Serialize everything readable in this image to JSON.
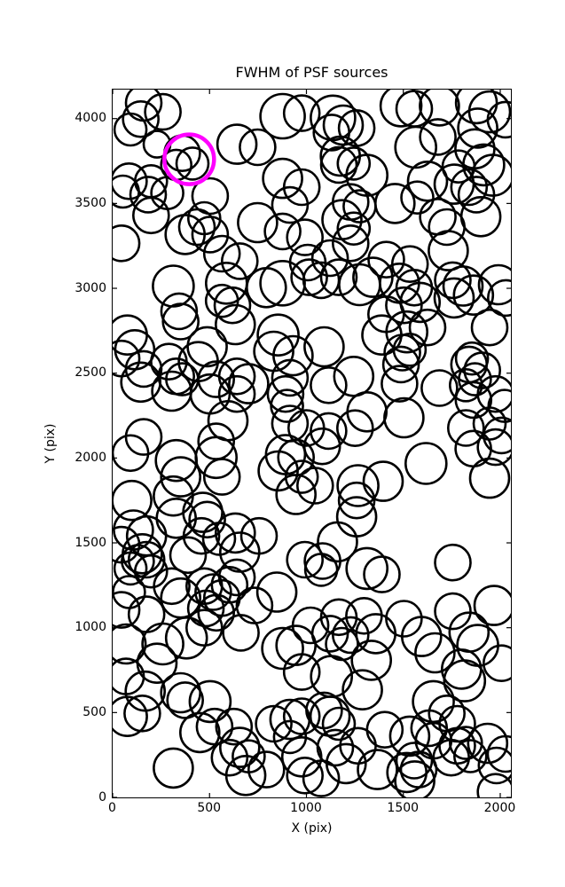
{
  "chart_data": {
    "type": "scatter",
    "title": "FWHM of PSF sources",
    "xlabel": "X (pix)",
    "ylabel": "Y (pix)",
    "xlim": [
      0,
      2055
    ],
    "ylim": [
      0,
      4171
    ],
    "xticks": [
      0,
      500,
      1000,
      1500,
      2000
    ],
    "yticks": [
      0,
      500,
      1000,
      1500,
      2000,
      2500,
      3000,
      3500,
      4000
    ],
    "grid": false,
    "legend": "none",
    "tick_direction": "in",
    "ticks_on_all_sides": true,
    "marker_style": {
      "fill": "none",
      "stroke": "#000000",
      "stroke_width": 2.6
    },
    "highlight": {
      "x": 395,
      "y": 3760,
      "r": 28,
      "color": "#ff00ff",
      "stroke_width": 4.5
    },
    "points": [
      [
        160,
        4093,
        20
      ],
      [
        259,
        4040,
        20
      ],
      [
        145,
        3997,
        20
      ],
      [
        92,
        3936,
        18
      ],
      [
        229,
        3849,
        15
      ],
      [
        359,
        3796,
        20
      ],
      [
        412,
        3735,
        18
      ],
      [
        328,
        3727,
        17
      ],
      [
        641,
        3849,
        22
      ],
      [
        748,
        3831,
        20
      ],
      [
        877,
        4014,
        25
      ],
      [
        976,
        4032,
        20
      ],
      [
        84,
        3631,
        20
      ],
      [
        53,
        3570,
        18
      ],
      [
        198,
        3631,
        18
      ],
      [
        183,
        3552,
        20
      ],
      [
        282,
        3561,
        18
      ],
      [
        198,
        3430,
        20
      ],
      [
        503,
        3544,
        20
      ],
      [
        473,
        3413,
        18
      ],
      [
        435,
        3361,
        20
      ],
      [
        374,
        3317,
        22
      ],
      [
        503,
        3317,
        20
      ],
      [
        877,
        3648,
        22
      ],
      [
        976,
        3596,
        20
      ],
      [
        915,
        3491,
        20
      ],
      [
        748,
        3387,
        22
      ],
      [
        877,
        3335,
        20
      ],
      [
        992,
        3300,
        20
      ],
      [
        46,
        3265,
        20
      ],
      [
        564,
        3204,
        20
      ],
      [
        656,
        3160,
        20
      ],
      [
        1007,
        3152,
        20
      ],
      [
        1137,
        4005,
        25
      ],
      [
        1190,
        3962,
        22
      ],
      [
        1129,
        3918,
        20
      ],
      [
        1259,
        3944,
        20
      ],
      [
        1175,
        3779,
        22
      ],
      [
        1167,
        3727,
        20
      ],
      [
        1244,
        3735,
        18
      ],
      [
        1488,
        4075,
        23
      ],
      [
        1556,
        4058,
        20
      ],
      [
        1686,
        4075,
        22
      ],
      [
        1564,
        3831,
        23
      ],
      [
        1678,
        3892,
        20
      ],
      [
        1877,
        4093,
        23
      ],
      [
        1945,
        4040,
        23
      ],
      [
        1884,
        3944,
        22
      ],
      [
        1869,
        3822,
        22
      ],
      [
        1915,
        3727,
        23
      ],
      [
        1785,
        3718,
        18
      ],
      [
        1312,
        3666,
        23
      ],
      [
        1625,
        3631,
        22
      ],
      [
        1762,
        3614,
        22
      ],
      [
        1839,
        3596,
        20
      ],
      [
        1877,
        3552,
        20
      ],
      [
        1961,
        3666,
        23
      ],
      [
        1457,
        3500,
        22
      ],
      [
        1572,
        3535,
        18
      ],
      [
        1228,
        3509,
        20
      ],
      [
        1274,
        3483,
        18
      ],
      [
        1183,
        3404,
        22
      ],
      [
        1244,
        3352,
        18
      ],
      [
        1228,
        3265,
        20
      ],
      [
        1678,
        3422,
        20
      ],
      [
        1724,
        3361,
        20
      ],
      [
        1900,
        3422,
        22
      ],
      [
        1122,
        3178,
        20
      ],
      [
        1412,
        3169,
        20
      ],
      [
        1534,
        3143,
        20
      ],
      [
        1732,
        3222,
        22
      ],
      [
        2027,
        3994,
        20
      ],
      [
        313,
        3013,
        23
      ],
      [
        343,
        2865,
        20
      ],
      [
        351,
        2804,
        20
      ],
      [
        587,
        3030,
        23
      ],
      [
        564,
        2926,
        18
      ],
      [
        618,
        2900,
        20
      ],
      [
        633,
        2786,
        22
      ],
      [
        793,
        3004,
        22
      ],
      [
        877,
        3030,
        25
      ],
      [
        76,
        2725,
        22
      ],
      [
        114,
        2638,
        22
      ],
      [
        46,
        2586,
        20
      ],
      [
        160,
        2525,
        20
      ],
      [
        145,
        2447,
        22
      ],
      [
        290,
        2568,
        20
      ],
      [
        328,
        2481,
        20
      ],
      [
        359,
        2464,
        18
      ],
      [
        305,
        2394,
        22
      ],
      [
        442,
        2568,
        22
      ],
      [
        488,
        2656,
        22
      ],
      [
        534,
        2464,
        20
      ],
      [
        503,
        2377,
        22
      ],
      [
        641,
        2481,
        20
      ],
      [
        702,
        2438,
        22
      ],
      [
        641,
        2377,
        20
      ],
      [
        595,
        2220,
        22
      ],
      [
        854,
        2725,
        23
      ],
      [
        831,
        2629,
        22
      ],
      [
        931,
        2603,
        22
      ],
      [
        915,
        2473,
        20
      ],
      [
        892,
        2377,
        20
      ],
      [
        900,
        2307,
        18
      ],
      [
        915,
        2203,
        20
      ],
      [
        999,
        2177,
        20
      ],
      [
        160,
        2124,
        20
      ],
      [
        534,
        2098,
        20
      ],
      [
        1014,
        3065,
        20
      ],
      [
        1076,
        3048,
        20
      ],
      [
        1167,
        3065,
        20
      ],
      [
        1274,
        3021,
        23
      ],
      [
        1343,
        3065,
        22
      ],
      [
        1480,
        3030,
        22
      ],
      [
        1556,
        3004,
        20
      ],
      [
        1503,
        2900,
        20
      ],
      [
        1587,
        2917,
        22
      ],
      [
        1755,
        3048,
        20
      ],
      [
        1808,
        3013,
        22
      ],
      [
        1862,
        2960,
        22
      ],
      [
        1762,
        2943,
        22
      ],
      [
        1991,
        3021,
        22
      ],
      [
        2029,
        2943,
        20
      ],
      [
        1411,
        2847,
        20
      ],
      [
        1389,
        2725,
        22
      ],
      [
        1518,
        2743,
        23
      ],
      [
        1625,
        2769,
        20
      ],
      [
        1945,
        2769,
        20
      ],
      [
        1091,
        2655,
        22
      ],
      [
        1495,
        2621,
        20
      ],
      [
        1533,
        2638,
        18
      ],
      [
        1488,
        2551,
        20
      ],
      [
        1854,
        2586,
        18
      ],
      [
        1839,
        2551,
        20
      ],
      [
        1907,
        2516,
        20
      ],
      [
        1244,
        2481,
        22
      ],
      [
        1114,
        2429,
        20
      ],
      [
        1480,
        2438,
        20
      ],
      [
        1686,
        2412,
        20
      ],
      [
        1823,
        2429,
        18
      ],
      [
        1869,
        2464,
        18
      ],
      [
        1862,
        2342,
        20
      ],
      [
        1976,
        2377,
        20
      ],
      [
        2022,
        2307,
        18
      ],
      [
        1312,
        2272,
        22
      ],
      [
        1503,
        2237,
        22
      ],
      [
        1251,
        2176,
        20
      ],
      [
        1114,
        2159,
        20
      ],
      [
        1823,
        2177,
        20
      ],
      [
        1945,
        2203,
        18
      ],
      [
        2006,
        2133,
        20
      ],
      [
        92,
        2029,
        20
      ],
      [
        328,
        1985,
        23
      ],
      [
        351,
        1889,
        22
      ],
      [
        534,
        2003,
        23
      ],
      [
        564,
        1889,
        20
      ],
      [
        99,
        1750,
        22
      ],
      [
        313,
        1776,
        22
      ],
      [
        328,
        1645,
        22
      ],
      [
        465,
        1680,
        22
      ],
      [
        488,
        1637,
        20
      ],
      [
        107,
        1576,
        22
      ],
      [
        175,
        1541,
        22
      ],
      [
        46,
        1489,
        20
      ],
      [
        153,
        1436,
        22
      ],
      [
        175,
        1401,
        20
      ],
      [
        130,
        1393,
        18
      ],
      [
        92,
        1349,
        18
      ],
      [
        198,
        1332,
        18
      ],
      [
        458,
        1541,
        20
      ],
      [
        549,
        1524,
        18
      ],
      [
        389,
        1428,
        20
      ],
      [
        633,
        1558,
        22
      ],
      [
        656,
        1445,
        22
      ],
      [
        755,
        1541,
        20
      ],
      [
        892,
        2020,
        22
      ],
      [
        854,
        1924,
        22
      ],
      [
        946,
        2003,
        20
      ],
      [
        976,
        1889,
        18
      ],
      [
        946,
        1785,
        22
      ],
      [
        992,
        1401,
        20
      ],
      [
        305,
        1245,
        20
      ],
      [
        351,
        1175,
        22
      ],
      [
        473,
        1245,
        20
      ],
      [
        519,
        1210,
        20
      ],
      [
        564,
        1175,
        20
      ],
      [
        603,
        1253,
        20
      ],
      [
        641,
        1297,
        20
      ],
      [
        481,
        1114,
        20
      ],
      [
        534,
        1088,
        20
      ],
      [
        84,
        1210,
        18
      ],
      [
        46,
        1105,
        20
      ],
      [
        175,
        1079,
        20
      ],
      [
        847,
        1210,
        22
      ],
      [
        732,
        1131,
        20
      ],
      [
        1081,
        2069,
        20
      ],
      [
        1045,
        1837,
        20
      ],
      [
        1266,
        1837,
        23
      ],
      [
        1396,
        1863,
        22
      ],
      [
        1259,
        1750,
        20
      ],
      [
        1259,
        1654,
        22
      ],
      [
        1617,
        1968,
        23
      ],
      [
        1945,
        1881,
        22
      ],
      [
        1861,
        2055,
        20
      ],
      [
        1976,
        2064,
        20
      ],
      [
        1160,
        1506,
        22
      ],
      [
        1083,
        1393,
        20
      ],
      [
        1076,
        1341,
        18
      ],
      [
        1312,
        1349,
        23
      ],
      [
        1389,
        1314,
        20
      ],
      [
        1755,
        1384,
        20
      ],
      [
        1968,
        1131,
        22
      ],
      [
        1755,
        1097,
        20
      ],
      [
        1297,
        1070,
        20
      ],
      [
        1167,
        1062,
        20
      ],
      [
        1503,
        1053,
        20
      ],
      [
        69,
        904,
        22
      ],
      [
        259,
        904,
        23
      ],
      [
        381,
        939,
        23
      ],
      [
        229,
        791,
        22
      ],
      [
        69,
        713,
        20
      ],
      [
        168,
        626,
        22
      ],
      [
        351,
        617,
        22
      ],
      [
        76,
        477,
        22
      ],
      [
        153,
        495,
        20
      ],
      [
        374,
        573,
        20
      ],
      [
        503,
        565,
        23
      ],
      [
        450,
        382,
        22
      ],
      [
        526,
        417,
        20
      ],
      [
        626,
        417,
        20
      ],
      [
        656,
        295,
        22
      ],
      [
        603,
        234,
        20
      ],
      [
        702,
        242,
        18
      ],
      [
        313,
        173,
        22
      ],
      [
        687,
        129,
        22
      ],
      [
        793,
        164,
        20
      ],
      [
        877,
        878,
        23
      ],
      [
        946,
        896,
        22
      ],
      [
        976,
        739,
        20
      ],
      [
        831,
        434,
        20
      ],
      [
        915,
        460,
        22
      ],
      [
        976,
        478,
        20
      ],
      [
        915,
        356,
        18
      ],
      [
        992,
        129,
        20
      ],
      [
        473,
        1000,
        20
      ],
      [
        662,
        970,
        20
      ],
      [
        1021,
        1014,
        20
      ],
      [
        1122,
        965,
        20
      ],
      [
        1228,
        957,
        20
      ],
      [
        1358,
        965,
        22
      ],
      [
        1183,
        904,
        18
      ],
      [
        1335,
        808,
        22
      ],
      [
        1129,
        713,
        23
      ],
      [
        1289,
        634,
        22
      ],
      [
        1594,
        948,
        22
      ],
      [
        1663,
        852,
        22
      ],
      [
        1839,
        974,
        22
      ],
      [
        1884,
        896,
        23
      ],
      [
        1800,
        756,
        22
      ],
      [
        1816,
        687,
        23
      ],
      [
        2006,
        791,
        20
      ],
      [
        1655,
        565,
        23
      ],
      [
        1724,
        495,
        20
      ],
      [
        1633,
        408,
        20
      ],
      [
        1778,
        434,
        20
      ],
      [
        1122,
        478,
        22
      ],
      [
        1091,
        513,
        20
      ],
      [
        1167,
        434,
        18
      ],
      [
        1404,
        399,
        20
      ],
      [
        1266,
        304,
        20
      ],
      [
        1205,
        199,
        22
      ],
      [
        1366,
        164,
        22
      ],
      [
        1556,
        217,
        20
      ],
      [
        1518,
        147,
        22
      ],
      [
        1579,
        164,
        20
      ],
      [
        1778,
        304,
        20
      ],
      [
        1823,
        321,
        18
      ],
      [
        1747,
        234,
        20
      ],
      [
        1846,
        243,
        18
      ],
      [
        1076,
        112,
        20
      ],
      [
        1976,
        33,
        20
      ],
      [
        976,
        239,
        22
      ],
      [
        1149,
        293,
        20
      ],
      [
        1935,
        319,
        22
      ],
      [
        1981,
        188,
        20
      ],
      [
        2027,
        256,
        20
      ],
      [
        1559,
        97,
        22
      ],
      [
        1656,
        334,
        20
      ],
      [
        1533,
        361,
        22
      ]
    ]
  }
}
